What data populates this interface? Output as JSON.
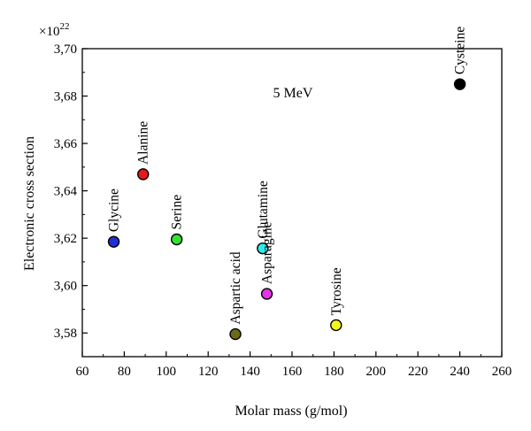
{
  "chart_data": {
    "type": "scatter",
    "title": "",
    "annotation": "5 MeV",
    "xlabel": "Molar mass (g/mol)",
    "ylabel": "Electronic cross section",
    "y_multiplier_base": "×10",
    "y_multiplier_exponent": "22",
    "xlim": [
      60,
      260
    ],
    "ylim": [
      3.57,
      3.7
    ],
    "x_ticks": [
      60,
      80,
      100,
      120,
      140,
      160,
      180,
      200,
      220,
      240,
      260
    ],
    "x_tick_labels": [
      "60",
      "80",
      "100",
      "120",
      "140",
      "160",
      "180",
      "200",
      "220",
      "240",
      "260"
    ],
    "y_ticks": [
      3.58,
      3.6,
      3.62,
      3.64,
      3.66,
      3.68,
      3.7
    ],
    "y_tick_labels": [
      "3,58",
      "3,60",
      "3,62",
      "3,64",
      "3,66",
      "3,68",
      "3,70"
    ],
    "grid": false,
    "legend": "none",
    "points": [
      {
        "label": "Glycine",
        "x": 75,
        "y": 3.6185,
        "color": "#1f2fd6"
      },
      {
        "label": "Alanine",
        "x": 89,
        "y": 3.647,
        "color": "#e51b1b"
      },
      {
        "label": "Serine",
        "x": 105,
        "y": 3.6195,
        "color": "#33e033"
      },
      {
        "label": "Aspartic acid",
        "x": 133,
        "y": 3.5795,
        "color": "#6b6b17"
      },
      {
        "label": "Glutamine",
        "x": 146,
        "y": 3.6157,
        "color": "#33e8e8"
      },
      {
        "label": "Asparagine",
        "x": 148,
        "y": 3.5965,
        "color": "#e633e6"
      },
      {
        "label": "Tyrosine",
        "x": 181,
        "y": 3.5833,
        "color": "#f5f51a"
      },
      {
        "label": "Cysteine",
        "x": 240,
        "y": 3.685,
        "color": "#000000"
      }
    ]
  }
}
